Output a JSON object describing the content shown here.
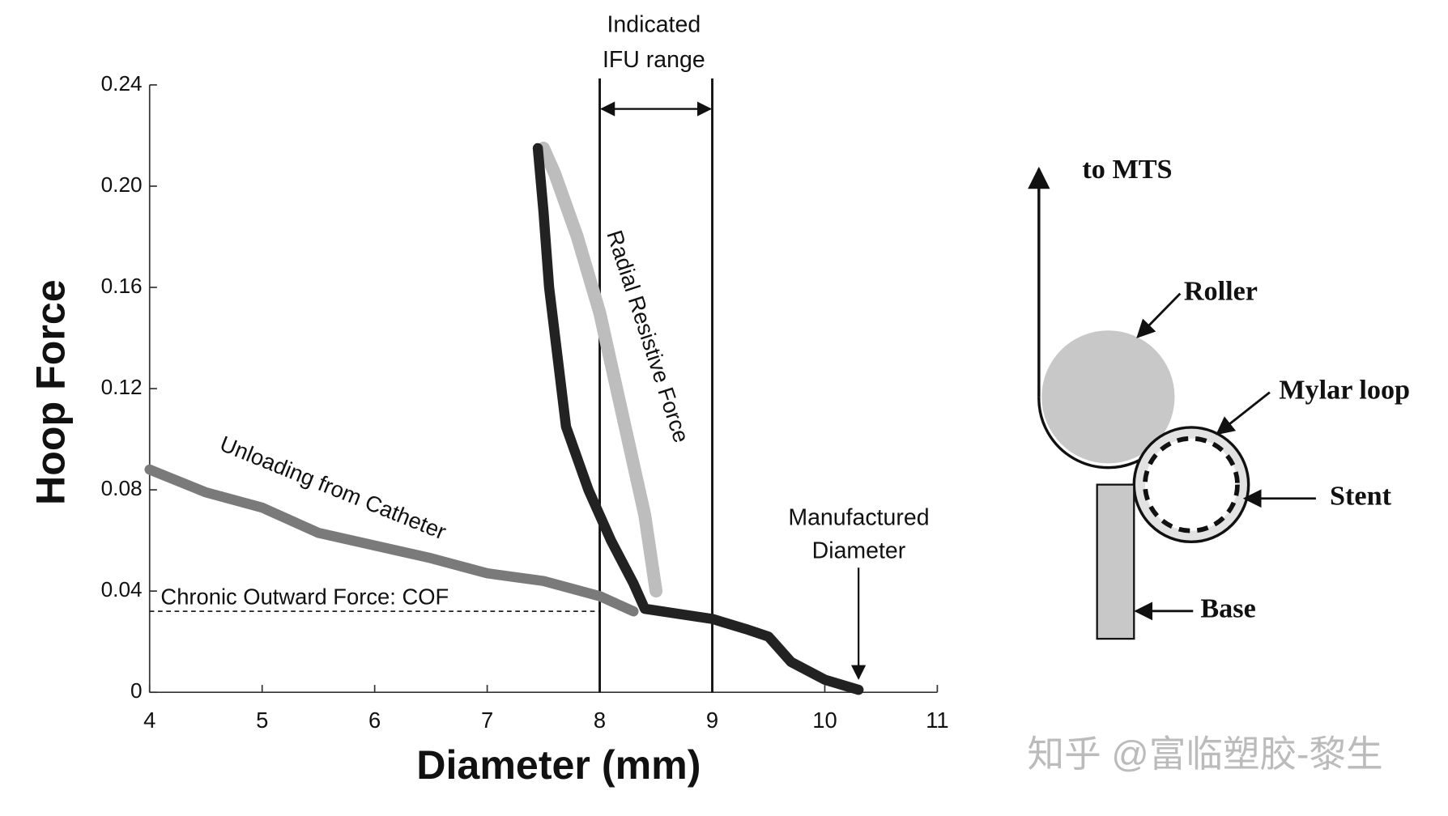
{
  "chart_data": {
    "type": "line",
    "x_label": "Diameter (mm)",
    "y_label": "Hoop Force",
    "xlim": [
      4,
      11
    ],
    "xticks": [
      4,
      5,
      6,
      7,
      8,
      9,
      10,
      11
    ],
    "ylim": [
      0,
      0.24
    ],
    "yticks": [
      0,
      0.04,
      0.08,
      0.12,
      0.16,
      {
        "value": 0.2,
        "label": "0.20"
      },
      0.24
    ],
    "series": [
      {
        "name": "Unloading from Catheter",
        "color": "#7a7a7a",
        "x": [
          4,
          4.5,
          5,
          5.5,
          6,
          6.5,
          7,
          7.5,
          8,
          8.3
        ],
        "values": [
          0.088,
          0.079,
          0.073,
          0.063,
          0.058,
          0.053,
          0.047,
          0.044,
          0.038,
          0.032
        ]
      },
      {
        "name": "Radial Resistive Force",
        "color": "#bdbdbd",
        "x": [
          8.5,
          8.4,
          8.2,
          8.0,
          7.8,
          7.6,
          7.5
        ],
        "values": [
          0.04,
          0.07,
          0.11,
          0.15,
          0.18,
          0.205,
          0.215
        ]
      },
      {
        "color": "#222222",
        "x": [
          7.45,
          7.5,
          7.55,
          7.7,
          7.9,
          8.1,
          8.3,
          8.4,
          8.7,
          9.0,
          9.3,
          9.5,
          9.7,
          10,
          10.3
        ],
        "values": [
          0.215,
          0.19,
          0.16,
          0.105,
          0.08,
          0.06,
          0.043,
          0.033,
          0.031,
          0.029,
          0.025,
          0.022,
          0.012,
          0.005,
          0.001
        ]
      }
    ],
    "hline": {
      "value": 0.032,
      "label": "Chronic Outward Force: COF"
    },
    "vlines": [
      8,
      9
    ],
    "ifu_label": [
      "Indicated",
      "IFU range"
    ],
    "manufactured": {
      "value": 10.3,
      "label": [
        "Manufactured",
        "Diameter"
      ]
    }
  },
  "diagram": {
    "to_mts": "to MTS",
    "roller": "Roller",
    "mylar_loop": "Mylar loop",
    "stent": "Stent",
    "base": "Base"
  },
  "watermark": "知乎 @富临塑胶-黎生"
}
